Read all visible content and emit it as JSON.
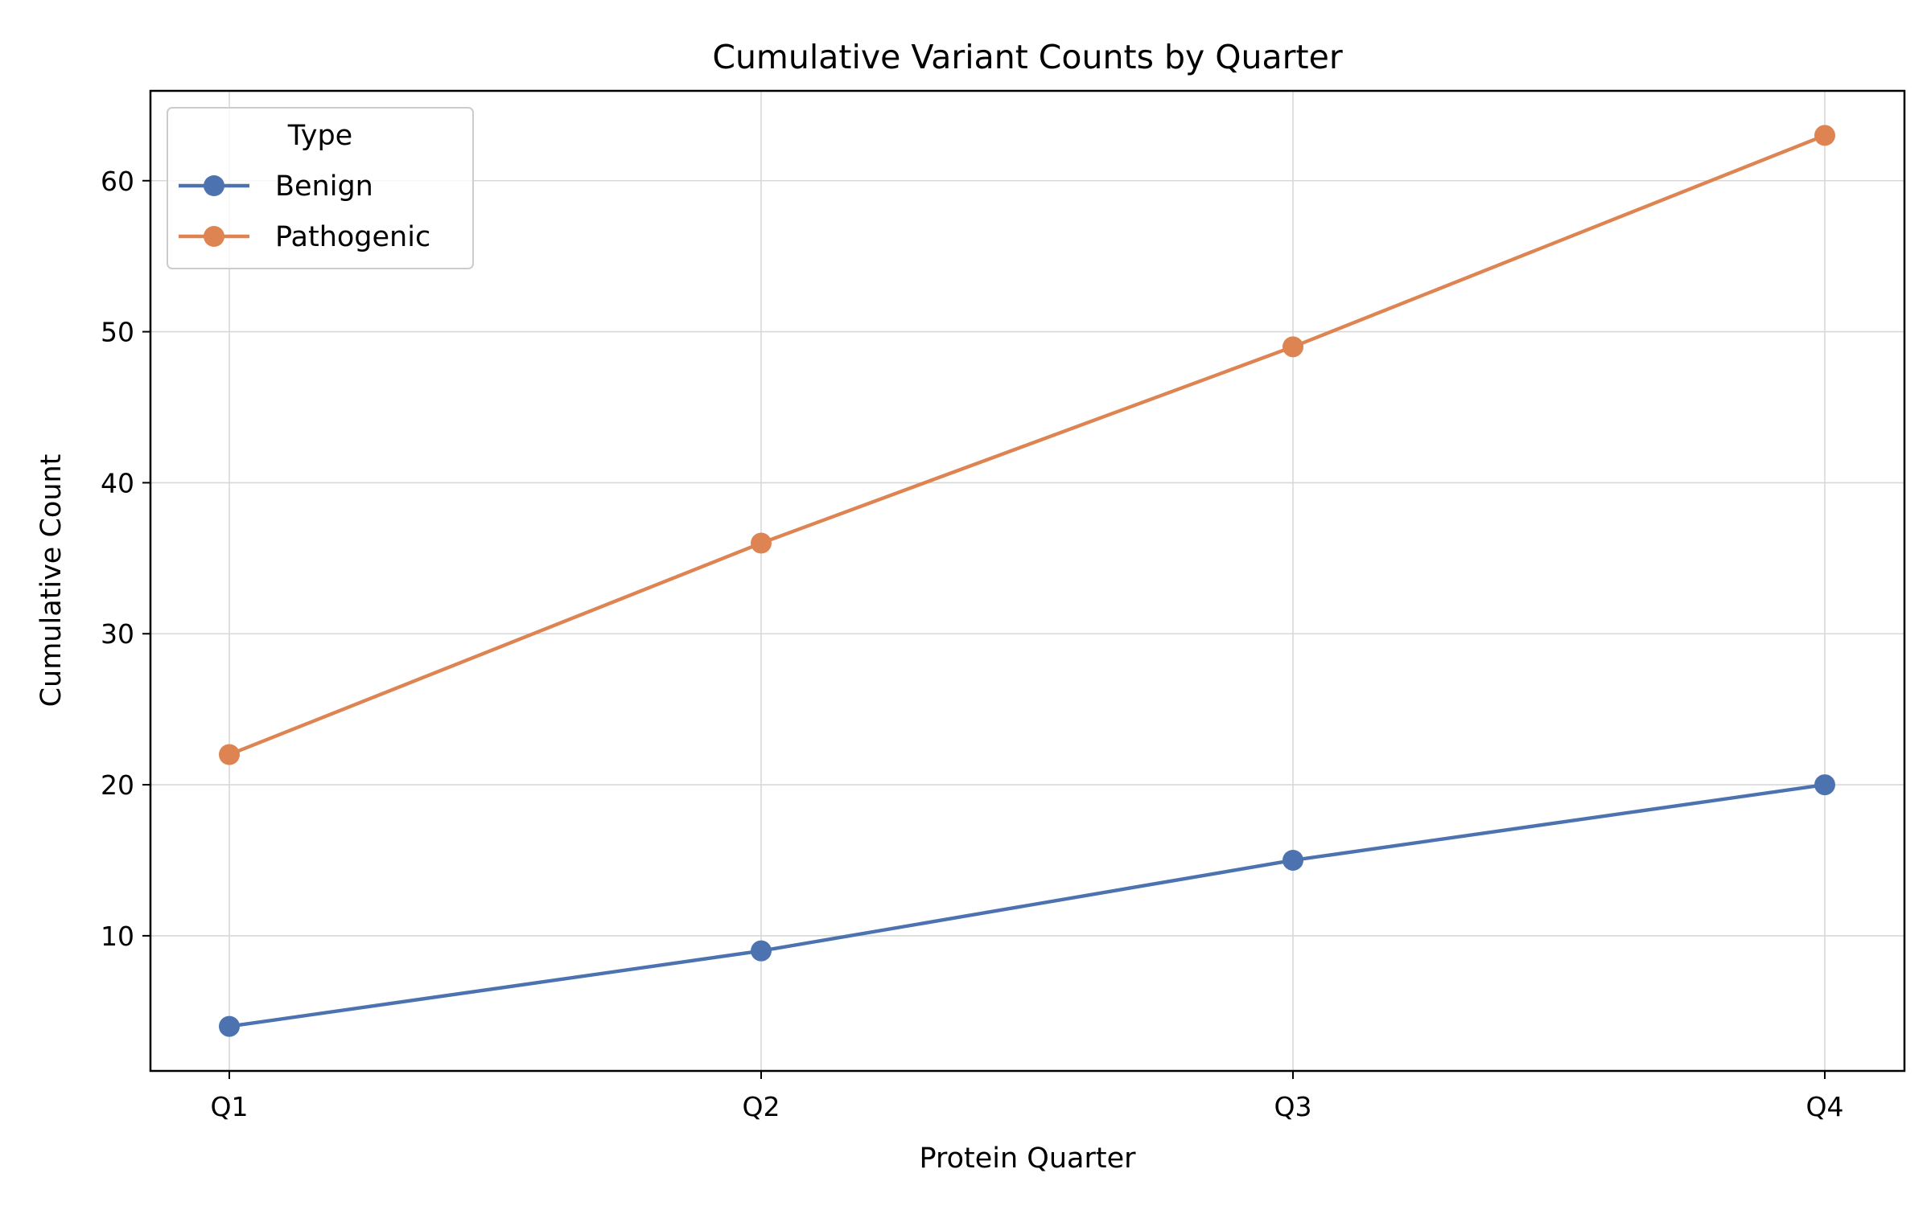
{
  "chart_data": {
    "type": "line",
    "title": "Cumulative Variant Counts by Quarter",
    "xlabel": "Protein Quarter",
    "ylabel": "Cumulative Count",
    "categories": [
      "Q1",
      "Q2",
      "Q3",
      "Q4"
    ],
    "yticks": [
      10,
      20,
      30,
      40,
      50,
      60
    ],
    "ylim": [
      1.05,
      65.95
    ],
    "grid": true,
    "legend": {
      "title": "Type",
      "placement": "top-left"
    },
    "series": [
      {
        "name": "Benign",
        "values": [
          4,
          9,
          15,
          20
        ],
        "color": "#4c72b0"
      },
      {
        "name": "Pathogenic",
        "values": [
          22,
          36,
          49,
          63
        ],
        "color": "#dd8452"
      }
    ]
  }
}
